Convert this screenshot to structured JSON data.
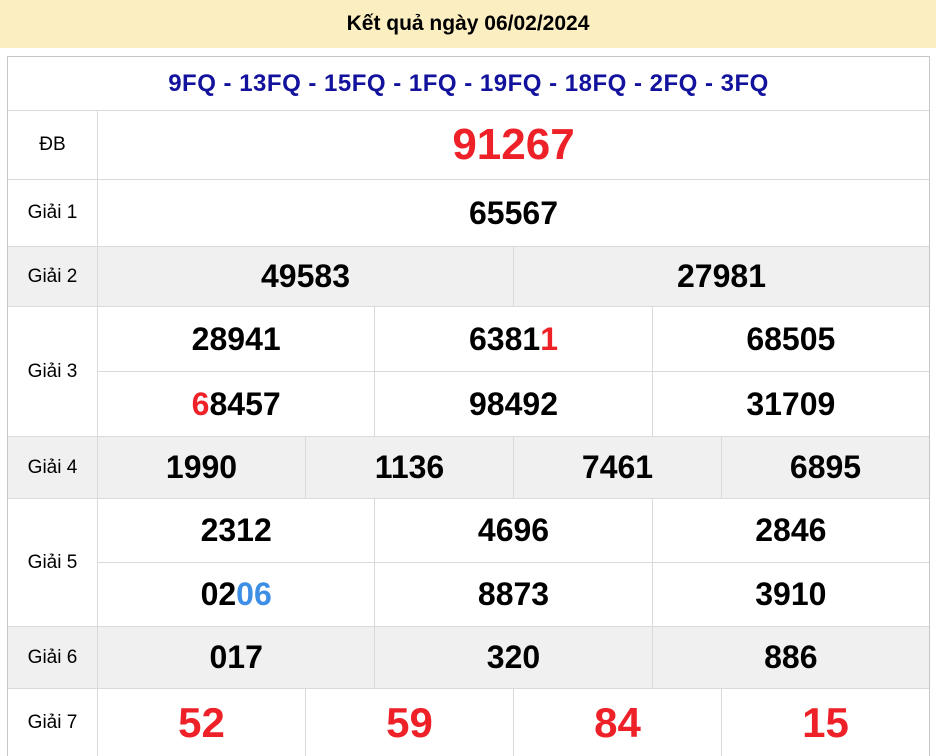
{
  "title": "Kết quả ngày 06/02/2024",
  "station_codes": "9FQ - 13FQ - 15FQ - 1FQ - 19FQ - 18FQ - 2FQ - 3FQ",
  "colors": {
    "header_bg": "#fbefc2",
    "stripe_bg": "#f0f0f0",
    "codes_blue": "#12129d",
    "accent_red": "#ee2128",
    "accent_blue": "#3d8fe5"
  },
  "rows": {
    "db": {
      "label": "ĐB",
      "value": "91267"
    },
    "g1": {
      "label": "Giải 1",
      "value": "65567"
    },
    "g2": {
      "label": "Giải 2",
      "v1": "49583",
      "v2": "27981"
    },
    "g3": {
      "label": "Giải 3",
      "r1c1": "28941",
      "r1c2_main": "6381",
      "r1c2_accent": "1",
      "r1c3": "68505",
      "r2c1_accent": "6",
      "r2c1_main": "8457",
      "r2c2": "98492",
      "r2c3": "31709"
    },
    "g4": {
      "label": "Giải 4",
      "v1": "1990",
      "v2": "1136",
      "v3": "7461",
      "v4": "6895"
    },
    "g5": {
      "label": "Giải 5",
      "r1c1": "2312",
      "r1c2": "4696",
      "r1c3": "2846",
      "r2c1_main": "02",
      "r2c1_accent": "06",
      "r2c2": "8873",
      "r2c3": "3910"
    },
    "g6": {
      "label": "Giải 6",
      "v1": "017",
      "v2": "320",
      "v3": "886"
    },
    "g7": {
      "label": "Giải 7",
      "v1": "52",
      "v2": "59",
      "v3": "84",
      "v4": "15"
    }
  }
}
